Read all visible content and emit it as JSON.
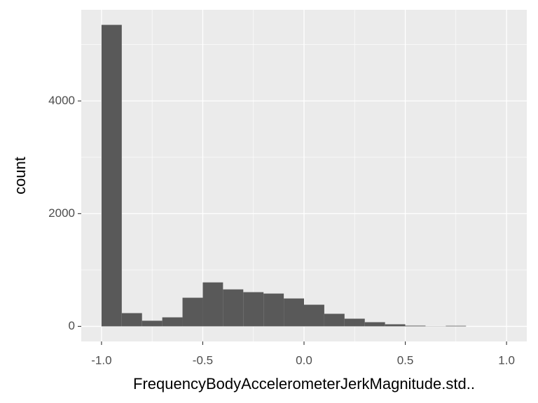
{
  "chart_data": {
    "type": "histogram",
    "x_label": "FrequencyBodyAccelerometerJerkMagnitude.std..",
    "y_label": "count",
    "bins": [
      -1.0,
      -0.9,
      -0.8,
      -0.7,
      -0.6,
      -0.5,
      -0.4,
      -0.3,
      -0.2,
      -0.1,
      0.0,
      0.1,
      0.2,
      0.3,
      0.4,
      0.5,
      0.6,
      0.7,
      0.8,
      0.9,
      1.0
    ],
    "values": [
      5350,
      235,
      100,
      160,
      508,
      780,
      656,
      607,
      582,
      495,
      384,
      223,
      136,
      74,
      37,
      12,
      3,
      10,
      0,
      0
    ],
    "color": "#595959",
    "xlim": [
      -1.1,
      1.1
    ],
    "ylim": [
      -267.5,
      5617.5
    ],
    "xticks": [
      {
        "value": -1,
        "label": "-1.0"
      },
      -0.5,
      {
        "value": 0,
        "label": "0.0"
      },
      0.5,
      {
        "value": 1,
        "label": "1.0"
      }
    ],
    "yticks": [
      0,
      2000,
      4000
    ],
    "xminor": [
      -0.75,
      -0.25,
      0.25,
      0.75
    ],
    "yminor": [
      1000,
      3000,
      5000
    ],
    "grid": true
  }
}
